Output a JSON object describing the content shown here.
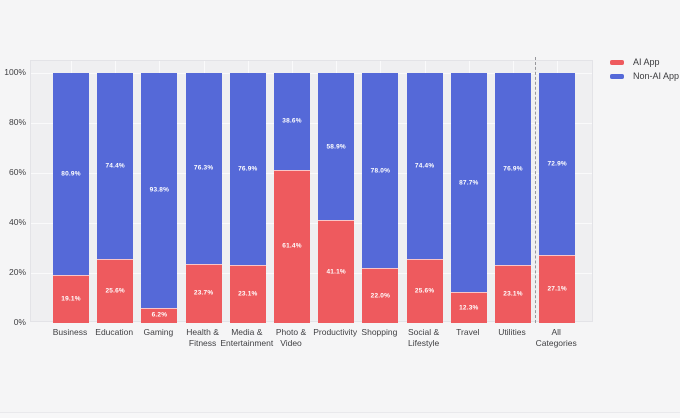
{
  "chart_data": {
    "type": "bar",
    "stacked": true,
    "orientation": "vertical",
    "title": "",
    "xlabel": "",
    "ylabel": "",
    "ylim": [
      0,
      100
    ],
    "y_ticks": [
      "0%",
      "20%",
      "40%",
      "60%",
      "80%",
      "100%"
    ],
    "grid": true,
    "categories": [
      "Business",
      "Education",
      "Gaming",
      "Health &\nFitness",
      "Media &\nEntertainment",
      "Photo &\nVideo",
      "Productivity",
      "Shopping",
      "Social &\nLifestyle",
      "Travel",
      "Utilities",
      "All\nCategories"
    ],
    "series": [
      {
        "name": "AI App",
        "color": "#ee5a5e",
        "values": [
          19.1,
          25.6,
          6.2,
          23.7,
          23.1,
          61.4,
          41.1,
          22.0,
          25.6,
          12.3,
          23.1,
          27.1
        ],
        "labels": [
          "19.1%",
          "25.6%",
          "6.2%",
          "23.7%",
          "23.1%",
          "61.4%",
          "41.1%",
          "22.0%",
          "25.6%",
          "12.3%",
          "23.1%",
          "27.1%"
        ]
      },
      {
        "name": "Non-AI App",
        "color": "#5569d8",
        "values": [
          80.9,
          74.4,
          93.8,
          76.3,
          76.9,
          38.6,
          58.9,
          78.0,
          74.4,
          87.7,
          76.9,
          72.9
        ],
        "labels": [
          "80.9%",
          "74.4%",
          "93.8%",
          "76.3%",
          "76.9%",
          "38.6%",
          "58.9%",
          "78.0%",
          "74.4%",
          "87.7%",
          "76.9%",
          "72.9%"
        ]
      }
    ],
    "legend": {
      "position": "top-right-outside",
      "items": [
        "AI App",
        "Non-AI App"
      ]
    },
    "separator_before_category": "All\nCategories",
    "value_label_color": "#ffffff"
  },
  "colors": {
    "page_background": "#f5f5f6",
    "plot_background": "#efeff1",
    "gridline": "#fafafb",
    "axis_text": "#3f3f42",
    "separator": "#97979c",
    "ai_app": "#ee5a5e",
    "non_ai_app": "#5569d8"
  }
}
